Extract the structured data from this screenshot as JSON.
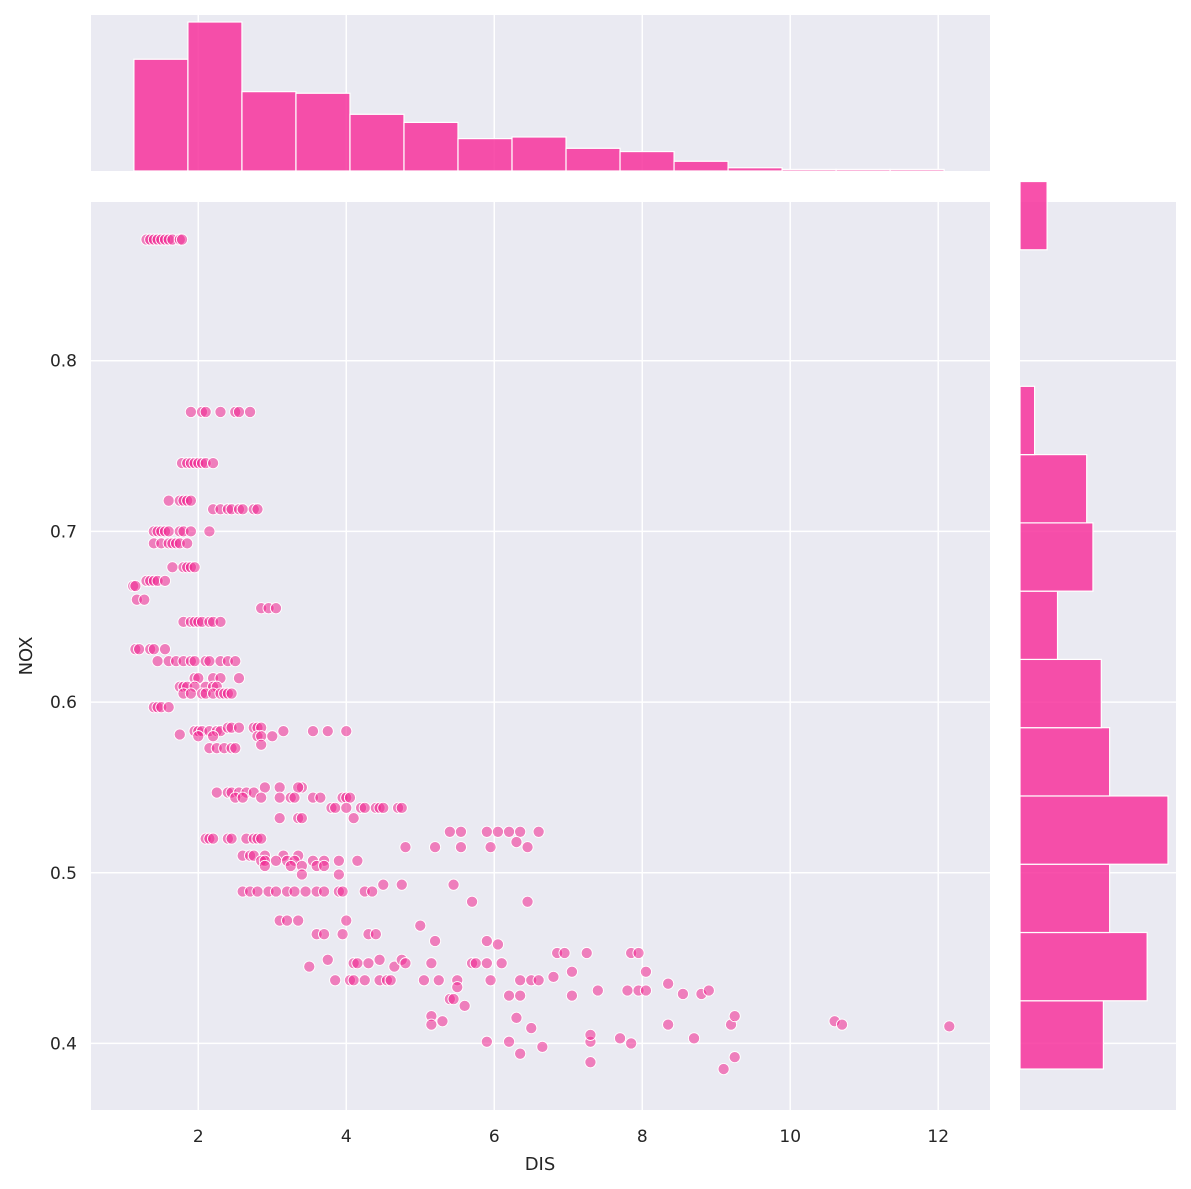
{
  "chart_data": {
    "type": "scatter",
    "xlabel": "DIS",
    "ylabel": "NOX",
    "xlim": [
      0.55,
      12.7
    ],
    "ylim": [
      0.361,
      0.893
    ],
    "x_ticks": [
      2,
      4,
      6,
      8,
      10,
      12
    ],
    "y_ticks": [
      0.4,
      0.5,
      0.6,
      0.7,
      0.8
    ],
    "x_tick_labels": [
      "2",
      "4",
      "6",
      "8",
      "10",
      "12"
    ],
    "y_tick_labels": [
      "0.4",
      "0.5",
      "0.6",
      "0.7",
      "0.8"
    ],
    "grid": true,
    "colors": {
      "marker": "#f0248f",
      "bar": "#f7339c",
      "panel_bg": "#eaeaf2",
      "grid": "#ffffff"
    },
    "points": [
      [
        1.3,
        0.871
      ],
      [
        1.35,
        0.871
      ],
      [
        1.4,
        0.871
      ],
      [
        1.45,
        0.871
      ],
      [
        1.5,
        0.871
      ],
      [
        1.55,
        0.871
      ],
      [
        1.6,
        0.871
      ],
      [
        1.65,
        0.871
      ],
      [
        1.75,
        0.871
      ],
      [
        1.78,
        0.871
      ],
      [
        1.9,
        0.77
      ],
      [
        2.05,
        0.77
      ],
      [
        2.1,
        0.77
      ],
      [
        2.3,
        0.77
      ],
      [
        2.5,
        0.77
      ],
      [
        2.55,
        0.77
      ],
      [
        2.7,
        0.77
      ],
      [
        1.78,
        0.74
      ],
      [
        1.85,
        0.74
      ],
      [
        1.9,
        0.74
      ],
      [
        1.95,
        0.74
      ],
      [
        2.0,
        0.74
      ],
      [
        2.05,
        0.74
      ],
      [
        2.1,
        0.74
      ],
      [
        2.2,
        0.74
      ],
      [
        1.6,
        0.718
      ],
      [
        1.75,
        0.718
      ],
      [
        1.8,
        0.718
      ],
      [
        1.85,
        0.718
      ],
      [
        1.9,
        0.718
      ],
      [
        2.2,
        0.713
      ],
      [
        2.3,
        0.713
      ],
      [
        2.4,
        0.713
      ],
      [
        2.45,
        0.713
      ],
      [
        2.55,
        0.713
      ],
      [
        2.6,
        0.713
      ],
      [
        2.75,
        0.713
      ],
      [
        2.8,
        0.713
      ],
      [
        1.4,
        0.7
      ],
      [
        1.45,
        0.7
      ],
      [
        1.5,
        0.7
      ],
      [
        1.55,
        0.7
      ],
      [
        1.6,
        0.7
      ],
      [
        1.75,
        0.7
      ],
      [
        1.8,
        0.7
      ],
      [
        1.9,
        0.7
      ],
      [
        2.15,
        0.7
      ],
      [
        1.4,
        0.693
      ],
      [
        1.5,
        0.693
      ],
      [
        1.6,
        0.693
      ],
      [
        1.65,
        0.693
      ],
      [
        1.7,
        0.693
      ],
      [
        1.75,
        0.693
      ],
      [
        1.85,
        0.693
      ],
      [
        1.65,
        0.679
      ],
      [
        1.8,
        0.679
      ],
      [
        1.85,
        0.679
      ],
      [
        1.9,
        0.679
      ],
      [
        1.95,
        0.679
      ],
      [
        1.3,
        0.671
      ],
      [
        1.35,
        0.671
      ],
      [
        1.4,
        0.671
      ],
      [
        1.45,
        0.671
      ],
      [
        1.55,
        0.671
      ],
      [
        1.12,
        0.668
      ],
      [
        1.15,
        0.668
      ],
      [
        1.17,
        0.66
      ],
      [
        1.27,
        0.66
      ],
      [
        2.85,
        0.655
      ],
      [
        2.95,
        0.655
      ],
      [
        3.05,
        0.655
      ],
      [
        1.8,
        0.647
      ],
      [
        1.9,
        0.647
      ],
      [
        1.95,
        0.647
      ],
      [
        2.0,
        0.647
      ],
      [
        2.05,
        0.647
      ],
      [
        2.15,
        0.647
      ],
      [
        2.2,
        0.647
      ],
      [
        2.3,
        0.647
      ],
      [
        1.15,
        0.631
      ],
      [
        1.2,
        0.631
      ],
      [
        1.35,
        0.631
      ],
      [
        1.4,
        0.631
      ],
      [
        1.55,
        0.631
      ],
      [
        1.45,
        0.624
      ],
      [
        1.6,
        0.624
      ],
      [
        1.7,
        0.624
      ],
      [
        1.8,
        0.624
      ],
      [
        1.9,
        0.624
      ],
      [
        1.95,
        0.624
      ],
      [
        2.1,
        0.624
      ],
      [
        2.15,
        0.624
      ],
      [
        2.3,
        0.624
      ],
      [
        2.4,
        0.624
      ],
      [
        2.5,
        0.624
      ],
      [
        1.95,
        0.614
      ],
      [
        2.0,
        0.614
      ],
      [
        2.2,
        0.614
      ],
      [
        2.3,
        0.614
      ],
      [
        2.55,
        0.614
      ],
      [
        1.75,
        0.609
      ],
      [
        1.8,
        0.609
      ],
      [
        1.85,
        0.609
      ],
      [
        1.95,
        0.609
      ],
      [
        2.1,
        0.609
      ],
      [
        2.2,
        0.609
      ],
      [
        2.25,
        0.609
      ],
      [
        1.8,
        0.605
      ],
      [
        1.9,
        0.605
      ],
      [
        2.05,
        0.605
      ],
      [
        2.1,
        0.605
      ],
      [
        2.2,
        0.605
      ],
      [
        2.3,
        0.605
      ],
      [
        2.35,
        0.605
      ],
      [
        2.4,
        0.605
      ],
      [
        2.45,
        0.605
      ],
      [
        1.4,
        0.597
      ],
      [
        1.45,
        0.597
      ],
      [
        1.5,
        0.597
      ],
      [
        1.6,
        0.597
      ],
      [
        1.75,
        0.581
      ],
      [
        1.95,
        0.583
      ],
      [
        2.0,
        0.583
      ],
      [
        2.05,
        0.583
      ],
      [
        2.15,
        0.583
      ],
      [
        2.25,
        0.583
      ],
      [
        2.3,
        0.583
      ],
      [
        2.4,
        0.585
      ],
      [
        2.45,
        0.585
      ],
      [
        2.55,
        0.585
      ],
      [
        2.75,
        0.585
      ],
      [
        2.8,
        0.585
      ],
      [
        2.85,
        0.585
      ],
      [
        3.15,
        0.583
      ],
      [
        3.55,
        0.583
      ],
      [
        3.75,
        0.583
      ],
      [
        4.0,
        0.583
      ],
      [
        2.0,
        0.58
      ],
      [
        2.2,
        0.58
      ],
      [
        2.8,
        0.58
      ],
      [
        2.85,
        0.58
      ],
      [
        3.0,
        0.58
      ],
      [
        2.15,
        0.573
      ],
      [
        2.25,
        0.573
      ],
      [
        2.35,
        0.573
      ],
      [
        2.45,
        0.573
      ],
      [
        2.5,
        0.573
      ],
      [
        2.85,
        0.575
      ],
      [
        2.25,
        0.547
      ],
      [
        2.4,
        0.547
      ],
      [
        2.45,
        0.547
      ],
      [
        2.55,
        0.547
      ],
      [
        2.65,
        0.547
      ],
      [
        2.75,
        0.547
      ],
      [
        2.9,
        0.55
      ],
      [
        3.1,
        0.55
      ],
      [
        3.4,
        0.55
      ],
      [
        3.35,
        0.55
      ],
      [
        2.5,
        0.544
      ],
      [
        2.6,
        0.544
      ],
      [
        2.85,
        0.544
      ],
      [
        3.1,
        0.544
      ],
      [
        3.25,
        0.544
      ],
      [
        3.3,
        0.544
      ],
      [
        3.55,
        0.544
      ],
      [
        3.65,
        0.544
      ],
      [
        3.95,
        0.544
      ],
      [
        4.0,
        0.544
      ],
      [
        4.05,
        0.544
      ],
      [
        3.8,
        0.538
      ],
      [
        3.85,
        0.538
      ],
      [
        4.0,
        0.538
      ],
      [
        4.2,
        0.538
      ],
      [
        4.25,
        0.538
      ],
      [
        4.4,
        0.538
      ],
      [
        4.45,
        0.538
      ],
      [
        4.5,
        0.538
      ],
      [
        4.7,
        0.538
      ],
      [
        4.75,
        0.538
      ],
      [
        3.1,
        0.532
      ],
      [
        3.35,
        0.532
      ],
      [
        3.4,
        0.532
      ],
      [
        4.1,
        0.532
      ],
      [
        2.1,
        0.52
      ],
      [
        2.15,
        0.52
      ],
      [
        2.2,
        0.52
      ],
      [
        2.4,
        0.52
      ],
      [
        2.45,
        0.52
      ],
      [
        2.65,
        0.52
      ],
      [
        2.75,
        0.52
      ],
      [
        2.8,
        0.52
      ],
      [
        2.85,
        0.52
      ],
      [
        2.6,
        0.51
      ],
      [
        2.7,
        0.51
      ],
      [
        2.75,
        0.51
      ],
      [
        2.9,
        0.51
      ],
      [
        3.15,
        0.51
      ],
      [
        3.35,
        0.51
      ],
      [
        2.85,
        0.507
      ],
      [
        2.9,
        0.507
      ],
      [
        3.05,
        0.507
      ],
      [
        3.2,
        0.507
      ],
      [
        3.3,
        0.507
      ],
      [
        3.55,
        0.507
      ],
      [
        3.7,
        0.507
      ],
      [
        3.9,
        0.507
      ],
      [
        4.15,
        0.507
      ],
      [
        2.9,
        0.504
      ],
      [
        3.25,
        0.504
      ],
      [
        3.4,
        0.504
      ],
      [
        3.6,
        0.504
      ],
      [
        3.7,
        0.504
      ],
      [
        3.9,
        0.499
      ],
      [
        3.4,
        0.499
      ],
      [
        2.6,
        0.489
      ],
      [
        2.7,
        0.489
      ],
      [
        2.8,
        0.489
      ],
      [
        2.95,
        0.489
      ],
      [
        3.05,
        0.489
      ],
      [
        3.2,
        0.489
      ],
      [
        3.3,
        0.489
      ],
      [
        3.45,
        0.489
      ],
      [
        3.6,
        0.489
      ],
      [
        3.7,
        0.489
      ],
      [
        3.9,
        0.489
      ],
      [
        3.95,
        0.489
      ],
      [
        4.25,
        0.489
      ],
      [
        4.35,
        0.489
      ],
      [
        4.5,
        0.493
      ],
      [
        4.75,
        0.493
      ],
      [
        5.45,
        0.493
      ],
      [
        3.1,
        0.472
      ],
      [
        3.2,
        0.472
      ],
      [
        3.35,
        0.472
      ],
      [
        4.0,
        0.472
      ],
      [
        5.0,
        0.469
      ],
      [
        3.6,
        0.464
      ],
      [
        3.7,
        0.464
      ],
      [
        3.95,
        0.464
      ],
      [
        4.3,
        0.464
      ],
      [
        4.4,
        0.464
      ],
      [
        5.2,
        0.46
      ],
      [
        4.8,
        0.515
      ],
      [
        5.2,
        0.515
      ],
      [
        5.55,
        0.515
      ],
      [
        5.95,
        0.515
      ],
      [
        6.45,
        0.515
      ],
      [
        5.4,
        0.524
      ],
      [
        5.55,
        0.524
      ],
      [
        5.9,
        0.524
      ],
      [
        6.05,
        0.524
      ],
      [
        6.2,
        0.524
      ],
      [
        6.35,
        0.524
      ],
      [
        6.6,
        0.524
      ],
      [
        6.3,
        0.518
      ],
      [
        5.7,
        0.483
      ],
      [
        6.45,
        0.483
      ],
      [
        3.5,
        0.445
      ],
      [
        3.75,
        0.449
      ],
      [
        4.1,
        0.447
      ],
      [
        4.15,
        0.447
      ],
      [
        4.3,
        0.447
      ],
      [
        4.45,
        0.449
      ],
      [
        4.65,
        0.445
      ],
      [
        4.75,
        0.449
      ],
      [
        4.8,
        0.447
      ],
      [
        5.15,
        0.447
      ],
      [
        5.7,
        0.447
      ],
      [
        5.75,
        0.447
      ],
      [
        5.9,
        0.447
      ],
      [
        6.1,
        0.447
      ],
      [
        5.9,
        0.46
      ],
      [
        6.05,
        0.458
      ],
      [
        6.85,
        0.453
      ],
      [
        6.95,
        0.453
      ],
      [
        7.25,
        0.453
      ],
      [
        7.85,
        0.453
      ],
      [
        7.95,
        0.453
      ],
      [
        3.85,
        0.437
      ],
      [
        4.05,
        0.437
      ],
      [
        4.1,
        0.437
      ],
      [
        4.25,
        0.437
      ],
      [
        4.45,
        0.437
      ],
      [
        4.55,
        0.437
      ],
      [
        4.6,
        0.437
      ],
      [
        5.05,
        0.437
      ],
      [
        5.25,
        0.437
      ],
      [
        5.5,
        0.437
      ],
      [
        5.95,
        0.437
      ],
      [
        6.35,
        0.437
      ],
      [
        6.5,
        0.437
      ],
      [
        6.6,
        0.437
      ],
      [
        6.8,
        0.439
      ],
      [
        7.05,
        0.442
      ],
      [
        8.05,
        0.442
      ],
      [
        5.5,
        0.433
      ],
      [
        5.4,
        0.426
      ],
      [
        5.45,
        0.426
      ],
      [
        5.6,
        0.422
      ],
      [
        5.15,
        0.416
      ],
      [
        5.15,
        0.411
      ],
      [
        5.3,
        0.413
      ],
      [
        7.4,
        0.431
      ],
      [
        7.8,
        0.431
      ],
      [
        7.95,
        0.431
      ],
      [
        8.05,
        0.431
      ],
      [
        8.35,
        0.435
      ],
      [
        8.55,
        0.429
      ],
      [
        8.8,
        0.429
      ],
      [
        8.9,
        0.431
      ],
      [
        7.05,
        0.428
      ],
      [
        6.2,
        0.428
      ],
      [
        6.35,
        0.428
      ],
      [
        6.3,
        0.415
      ],
      [
        6.5,
        0.409
      ],
      [
        8.35,
        0.411
      ],
      [
        9.2,
        0.411
      ],
      [
        9.25,
        0.416
      ],
      [
        5.9,
        0.401
      ],
      [
        6.2,
        0.401
      ],
      [
        6.35,
        0.394
      ],
      [
        6.65,
        0.398
      ],
      [
        7.3,
        0.401
      ],
      [
        7.3,
        0.405
      ],
      [
        7.3,
        0.389
      ],
      [
        7.7,
        0.403
      ],
      [
        7.85,
        0.4
      ],
      [
        8.7,
        0.403
      ],
      [
        9.1,
        0.385
      ],
      [
        9.25,
        0.392
      ],
      [
        10.6,
        0.413
      ],
      [
        10.7,
        0.411
      ],
      [
        12.15,
        0.41
      ]
    ],
    "top_histogram": {
      "bin_edges": [
        1.13,
        1.86,
        2.59,
        3.32,
        4.05,
        4.78,
        5.51,
        6.24,
        6.97,
        7.7,
        8.43,
        9.16,
        9.89,
        10.62,
        11.35,
        12.08
      ],
      "counts": [
        69,
        92,
        49,
        48,
        35,
        30,
        20,
        21,
        14,
        12,
        6,
        2,
        1,
        1,
        1
      ]
    },
    "right_histogram": {
      "bin_edges": [
        0.385,
        0.425,
        0.465,
        0.505,
        0.545,
        0.585,
        0.625,
        0.665,
        0.705,
        0.745,
        0.785,
        0.825,
        0.865,
        0.905
      ],
      "counts": [
        40,
        61,
        43,
        71,
        43,
        39,
        18,
        35,
        32,
        7,
        0,
        0,
        13
      ]
    }
  }
}
